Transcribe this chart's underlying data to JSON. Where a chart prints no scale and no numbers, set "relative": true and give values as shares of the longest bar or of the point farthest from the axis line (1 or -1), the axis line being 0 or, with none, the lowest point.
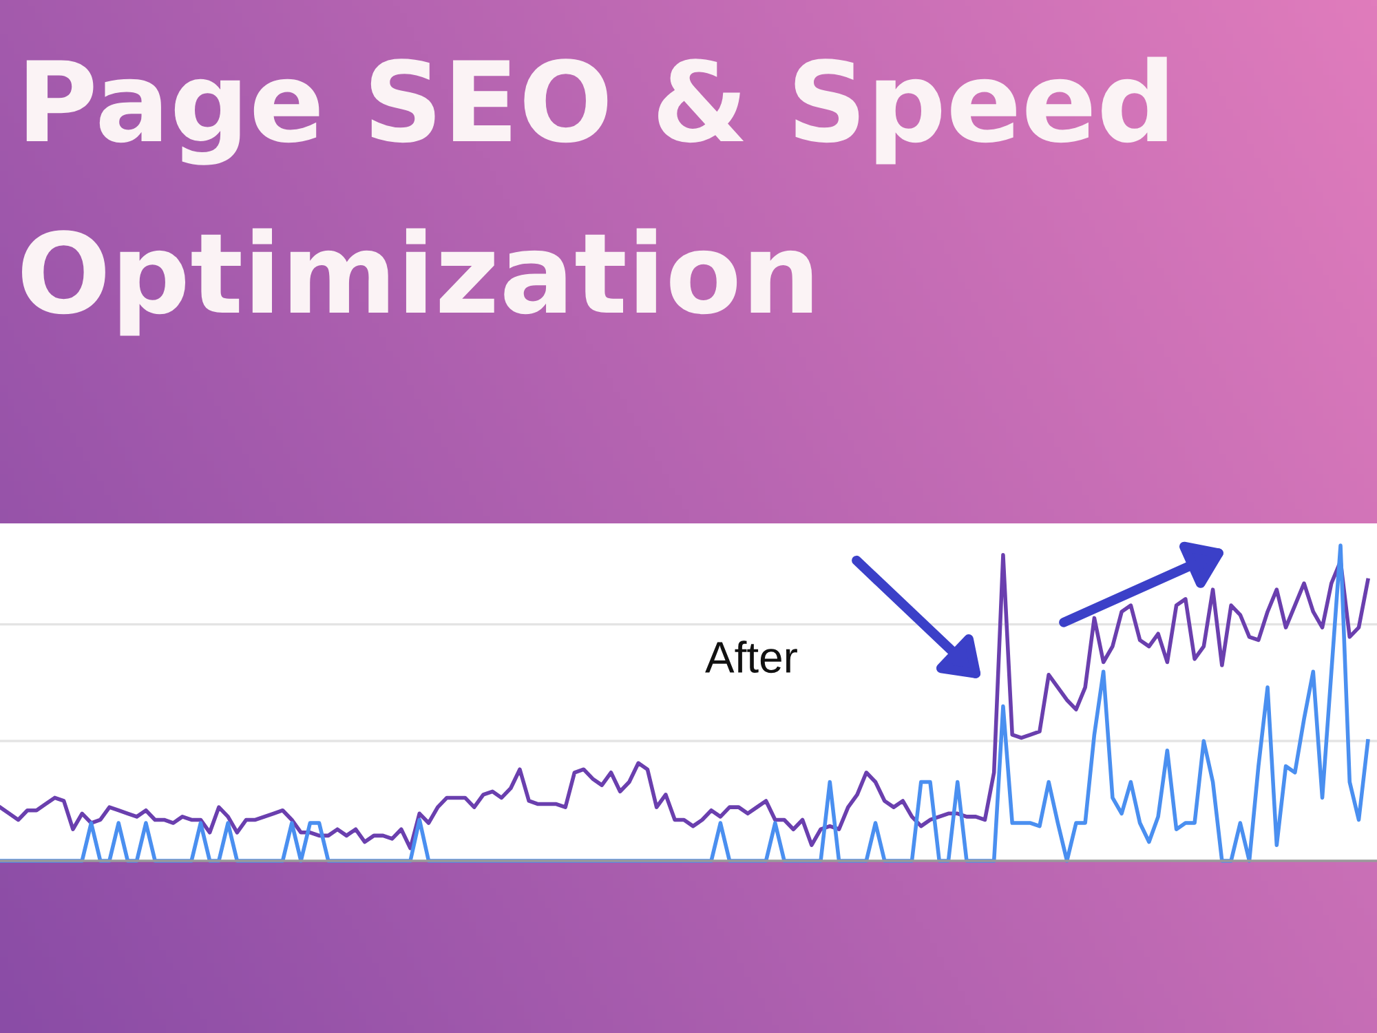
{
  "chart_data": {
    "type": "line",
    "title": "Page SEO & Speed Optimization",
    "relative": true,
    "legend": false,
    "line_style": "solid",
    "marker": "none",
    "ref_lines": [
      {
        "axis": "y",
        "value": 0.38,
        "color": "#e4e4e4"
      },
      {
        "axis": "y",
        "value": 0.75,
        "color": "#e4e4e4"
      }
    ],
    "annotations": [
      "After"
    ],
    "categories": [
      null,
      null,
      null,
      null,
      null,
      null,
      null,
      null,
      null,
      null,
      null,
      null,
      null,
      null,
      null,
      null,
      null,
      null,
      null,
      null,
      null,
      null,
      null,
      null,
      null,
      null,
      null,
      null,
      null,
      null,
      null,
      null,
      null,
      null,
      null,
      null,
      null,
      null,
      null,
      null,
      null,
      null,
      null,
      null,
      null,
      null,
      null,
      null,
      null,
      null,
      null,
      null,
      null,
      null,
      null,
      null,
      null,
      null,
      null,
      null,
      null,
      null,
      null,
      null,
      null,
      null,
      null,
      null,
      null,
      null,
      null,
      null,
      null,
      null,
      null,
      null,
      null,
      null,
      null,
      null,
      null,
      null,
      null,
      null,
      null,
      null,
      null,
      null,
      null,
      null,
      null,
      null,
      null,
      null,
      null,
      null,
      null,
      null,
      null,
      null,
      null,
      null,
      null,
      null,
      null,
      null,
      null,
      null,
      null,
      null,
      null,
      null,
      null,
      null,
      null,
      null,
      null,
      null,
      null,
      null,
      null,
      null,
      null,
      null,
      null,
      null,
      null,
      null,
      null,
      null,
      null,
      null,
      null,
      null,
      null,
      null,
      null,
      null,
      null,
      null,
      null,
      null,
      null,
      null,
      null,
      null,
      null,
      null,
      null,
      null,
      null
    ],
    "series": [
      {
        "color": "#6a3fae",
        "values": [
          0.17,
          0.15,
          0.13,
          0.16,
          0.16,
          0.18,
          0.2,
          0.19,
          0.1,
          0.15,
          0.12,
          0.13,
          0.17,
          0.16,
          0.15,
          0.14,
          0.16,
          0.13,
          0.13,
          0.12,
          0.14,
          0.13,
          0.13,
          0.09,
          0.17,
          0.14,
          0.09,
          0.13,
          0.13,
          0.14,
          0.15,
          0.16,
          0.13,
          0.09,
          0.09,
          0.08,
          0.08,
          0.1,
          0.08,
          0.1,
          0.06,
          0.08,
          0.08,
          0.07,
          0.1,
          0.04,
          0.15,
          0.12,
          0.17,
          0.2,
          0.2,
          0.2,
          0.17,
          0.21,
          0.22,
          0.2,
          0.23,
          0.29,
          0.19,
          0.18,
          0.18,
          0.18,
          0.17,
          0.28,
          0.29,
          0.26,
          0.24,
          0.28,
          0.22,
          0.25,
          0.31,
          0.29,
          0.17,
          0.21,
          0.13,
          0.13,
          0.11,
          0.13,
          0.16,
          0.14,
          0.17,
          0.17,
          0.15,
          0.17,
          0.19,
          0.13,
          0.13,
          0.1,
          0.13,
          0.05,
          0.1,
          0.11,
          0.1,
          0.17,
          0.21,
          0.28,
          0.25,
          0.19,
          0.17,
          0.19,
          0.14,
          0.11,
          0.13,
          0.14,
          0.15,
          0.15,
          0.14,
          0.14,
          0.13,
          0.28,
          0.97,
          0.4,
          0.39,
          0.4,
          0.41,
          0.59,
          0.55,
          0.51,
          0.48,
          0.55,
          0.77,
          0.63,
          0.68,
          0.79,
          0.81,
          0.7,
          0.68,
          0.72,
          0.63,
          0.81,
          0.83,
          0.64,
          0.68,
          0.86,
          0.62,
          0.81,
          0.78,
          0.71,
          0.7,
          0.79,
          0.86,
          0.74,
          0.81,
          0.88,
          0.79,
          0.74,
          0.88,
          0.95,
          0.71,
          0.74,
          0.89
        ]
      },
      {
        "color": "#4a8ff0",
        "values": [
          0,
          0,
          0,
          0,
          0,
          0,
          0,
          0,
          0,
          0,
          0.12,
          0,
          0,
          0.12,
          0,
          0,
          0.12,
          0,
          0,
          0,
          0,
          0,
          0.12,
          0,
          0,
          0.12,
          0,
          0,
          0,
          0,
          0,
          0,
          0.12,
          0,
          0.12,
          0.12,
          0,
          0,
          0,
          0,
          0,
          0,
          0,
          0,
          0,
          0,
          0.13,
          0,
          0,
          0,
          0,
          0,
          0,
          0,
          0,
          0,
          0,
          0,
          0,
          0,
          0,
          0,
          0,
          0,
          0,
          0,
          0,
          0,
          0,
          0,
          0,
          0,
          0,
          0,
          0,
          0,
          0,
          0,
          0,
          0.12,
          0,
          0,
          0,
          0,
          0,
          0.12,
          0,
          0,
          0,
          0,
          0,
          0.25,
          0,
          0,
          0,
          0,
          0.12,
          0,
          0,
          0,
          0,
          0.25,
          0.25,
          0,
          0,
          0.25,
          0,
          0,
          0,
          0,
          0.49,
          0.12,
          0.12,
          0.12,
          0.11,
          0.25,
          0.12,
          0,
          0.12,
          0.12,
          0.4,
          0.6,
          0.2,
          0.15,
          0.25,
          0.12,
          0.06,
          0.14,
          0.35,
          0.1,
          0.12,
          0.12,
          0.38,
          0.25,
          0,
          0,
          0.12,
          0,
          0.3,
          0.55,
          0.05,
          0.3,
          0.28,
          0.45,
          0.6,
          0.2,
          0.6,
          1.0,
          0.25,
          0.13,
          0.38
        ]
      }
    ]
  }
}
